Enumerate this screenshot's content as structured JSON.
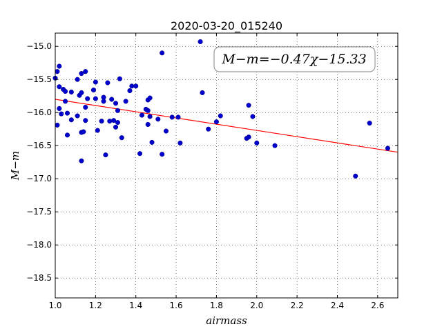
{
  "chart_data": {
    "type": "scatter",
    "title": "2020-03-20_015240",
    "xlabel": "airmass",
    "ylabel": "M−m",
    "xlim": [
      1.0,
      2.7
    ],
    "ylim": [
      -18.8,
      -14.8
    ],
    "y_inverted": true,
    "x_ticks": [
      1.0,
      1.2,
      1.4,
      1.6,
      1.8,
      2.0,
      2.2,
      2.4,
      2.6
    ],
    "x_tick_labels": [
      "1.0",
      "1.2",
      "1.4",
      "1.6",
      "1.8",
      "2.0",
      "2.2",
      "2.4",
      "2.6"
    ],
    "y_ticks": [
      -15.0,
      -15.5,
      -16.0,
      -16.5,
      -17.0,
      -17.5,
      -18.0,
      -18.5
    ],
    "y_tick_labels": [
      "−15.0",
      "−15.5",
      "−16.0",
      "−16.5",
      "−17.0",
      "−17.5",
      "−18.0",
      "−18.5"
    ],
    "grid": true,
    "annotation": "M−m=−0.47χ−15.33",
    "fit": {
      "slope": -0.47,
      "intercept": -15.33,
      "color": "#ff0000"
    },
    "point_color": "#0000cc",
    "points": [
      [
        1.0,
        -15.48
      ],
      [
        1.01,
        -15.38
      ],
      [
        1.01,
        -16.19
      ],
      [
        1.02,
        -15.3
      ],
      [
        1.02,
        -15.61
      ],
      [
        1.02,
        -15.94
      ],
      [
        1.03,
        -16.02
      ],
      [
        1.04,
        -15.65
      ],
      [
        1.05,
        -15.68
      ],
      [
        1.05,
        -15.83
      ],
      [
        1.06,
        -16.01
      ],
      [
        1.06,
        -16.34
      ],
      [
        1.08,
        -15.69
      ],
      [
        1.08,
        -16.11
      ],
      [
        1.11,
        -16.05
      ],
      [
        1.11,
        -15.5
      ],
      [
        1.12,
        -15.74
      ],
      [
        1.13,
        -15.41
      ],
      [
        1.13,
        -15.7
      ],
      [
        1.13,
        -16.3
      ],
      [
        1.13,
        -16.73
      ],
      [
        1.14,
        -16.29
      ],
      [
        1.15,
        -15.38
      ],
      [
        1.15,
        -15.92
      ],
      [
        1.15,
        -16.12
      ],
      [
        1.16,
        -15.79
      ],
      [
        1.19,
        -15.66
      ],
      [
        1.2,
        -15.54
      ],
      [
        1.2,
        -15.79
      ],
      [
        1.21,
        -16.27
      ],
      [
        1.23,
        -16.13
      ],
      [
        1.24,
        -15.77
      ],
      [
        1.24,
        -15.83
      ],
      [
        1.25,
        -16.64
      ],
      [
        1.26,
        -15.55
      ],
      [
        1.27,
        -16.13
      ],
      [
        1.28,
        -15.8
      ],
      [
        1.29,
        -16.12
      ],
      [
        1.3,
        -15.86
      ],
      [
        1.3,
        -16.22
      ],
      [
        1.31,
        -16.15
      ],
      [
        1.31,
        -15.97
      ],
      [
        1.32,
        -15.49
      ],
      [
        1.33,
        -16.38
      ],
      [
        1.35,
        -15.83
      ],
      [
        1.37,
        -15.67
      ],
      [
        1.38,
        -15.6
      ],
      [
        1.4,
        -15.6
      ],
      [
        1.42,
        -16.62
      ],
      [
        1.43,
        -16.04
      ],
      [
        1.45,
        -15.95
      ],
      [
        1.46,
        -15.97
      ],
      [
        1.46,
        -16.18
      ],
      [
        1.46,
        -15.81
      ],
      [
        1.47,
        -16.06
      ],
      [
        1.47,
        -15.78
      ],
      [
        1.48,
        -16.45
      ],
      [
        1.51,
        -16.1
      ],
      [
        1.53,
        -16.63
      ],
      [
        1.53,
        -15.1
      ],
      [
        1.55,
        -16.28
      ],
      [
        1.58,
        -16.07
      ],
      [
        1.61,
        -16.07
      ],
      [
        1.62,
        -16.46
      ],
      [
        1.72,
        -14.93
      ],
      [
        1.73,
        -15.7
      ],
      [
        1.76,
        -16.25
      ],
      [
        1.8,
        -16.14
      ],
      [
        1.82,
        -16.05
      ],
      [
        1.95,
        -16.39
      ],
      [
        1.96,
        -15.89
      ],
      [
        1.96,
        -16.37
      ],
      [
        1.98,
        -16.06
      ],
      [
        2.0,
        -16.46
      ],
      [
        2.09,
        -16.5
      ],
      [
        2.49,
        -16.96
      ],
      [
        2.56,
        -16.16
      ],
      [
        2.65,
        -16.54
      ]
    ]
  }
}
